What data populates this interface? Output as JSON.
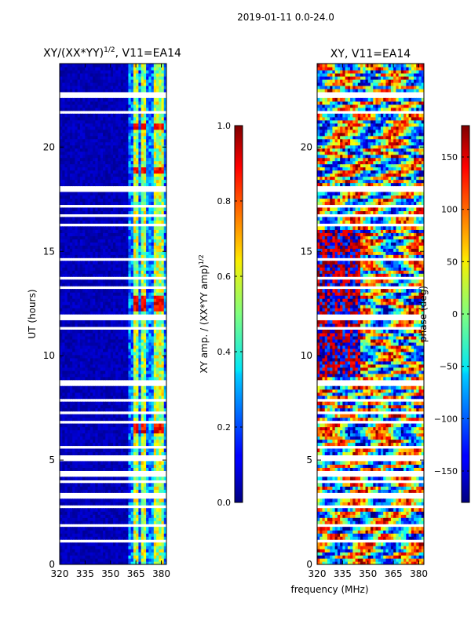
{
  "suptitle": "2019-01-11 0.0-24.0",
  "chart_data": [
    {
      "type": "heatmap",
      "title": "XY/(XX*YY)^{1/2}, V11=EA14",
      "title_main": "XY/(XX*YY)",
      "title_sup": "1/2",
      "title_tail": ", V11=EA14",
      "ylabel": "UT (hours)",
      "xlim": [
        320,
        383
      ],
      "ylim": [
        0,
        24
      ],
      "xticks": [
        320,
        335,
        350,
        365,
        380
      ],
      "yticks": [
        0,
        5,
        10,
        15,
        20
      ],
      "bright_bands_mhz": [
        [
          363,
          366
        ],
        [
          368,
          371
        ],
        [
          375,
          378
        ],
        [
          379,
          381
        ]
      ],
      "high_amplitude_hours": [
        [
          6.3,
          6.7
        ],
        [
          12.2,
          12.9
        ],
        [
          18.7,
          19.1
        ],
        [
          20.8,
          21.2
        ]
      ],
      "colorbar": {
        "label": "XY amp. / (XX*YY amp)^{1/2}",
        "label_main": "XY amp. / (XX*YY amp)",
        "label_sup": "1/2",
        "range": [
          0.0,
          1.0
        ],
        "ticks": [
          "0.0",
          "0.2",
          "0.4",
          "0.6",
          "0.8",
          "1.0"
        ]
      }
    },
    {
      "type": "heatmap",
      "title": "XY, V11=EA14",
      "xlabel": "frequency (MHz)",
      "xlim": [
        320,
        383
      ],
      "ylim": [
        0,
        24
      ],
      "xticks": [
        320,
        335,
        350,
        365,
        380
      ],
      "yticks": [
        0,
        5,
        10,
        15,
        20
      ],
      "colorbar": {
        "label": "phase (deg)",
        "range": [
          -180,
          180
        ],
        "ticks": [
          "−150",
          "−100",
          "−50",
          "0",
          "50",
          "100",
          "150"
        ]
      }
    }
  ],
  "gap_hours": [
    [
      22.3,
      22.6
    ],
    [
      21.6,
      21.75
    ],
    [
      20.5,
      20.6
    ],
    [
      19.75,
      19.85
    ],
    [
      17.9,
      18.1
    ],
    [
      17.1,
      17.2
    ],
    [
      16.6,
      16.75
    ],
    [
      16.2,
      16.3
    ],
    [
      14.6,
      14.75
    ],
    [
      13.7,
      13.8
    ],
    [
      13.2,
      13.3
    ],
    [
      11.75,
      12.0
    ],
    [
      11.3,
      11.4
    ],
    [
      10.3,
      10.4
    ],
    [
      8.6,
      8.8
    ],
    [
      7.8,
      8.0
    ],
    [
      7.2,
      7.4
    ],
    [
      6.8,
      6.9
    ],
    [
      5.5,
      5.7
    ],
    [
      5.0,
      5.2
    ],
    [
      4.2,
      4.5
    ],
    [
      3.9,
      4.0
    ],
    [
      3.2,
      3.4
    ],
    [
      2.7,
      2.8
    ],
    [
      1.85,
      1.95
    ],
    [
      1.1,
      1.2
    ]
  ],
  "colors": {
    "low": "#00007f",
    "high": "#7f0000"
  }
}
